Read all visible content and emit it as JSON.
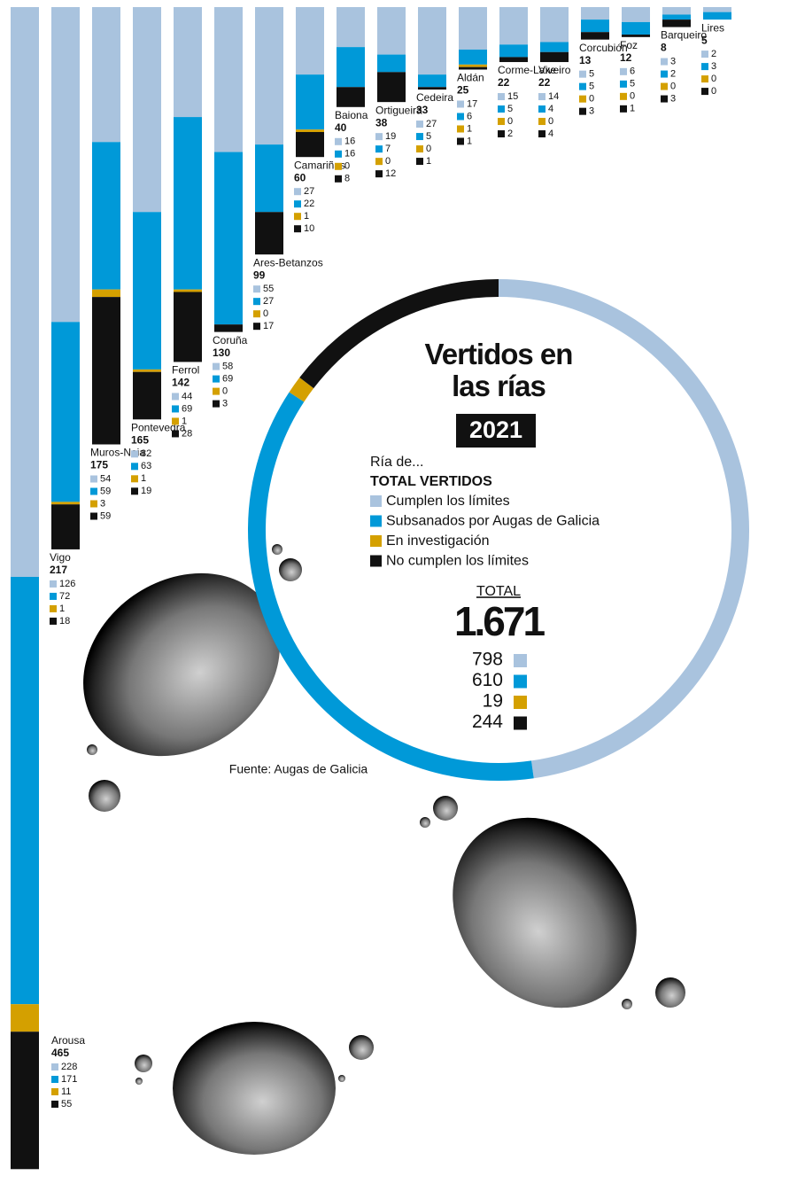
{
  "chart_data": [
    {
      "type": "bar",
      "stacked": true,
      "categories": [
        "Arousa",
        "Vigo",
        "Muros-Noia",
        "Pontevedra",
        "Ferrol",
        "Coruña",
        "Ares-Betanzos",
        "Camariñas",
        "Baiona",
        "Ortigueira",
        "Cedeira",
        "Aldán",
        "Corme-Laxe",
        "Viveiro",
        "Corcubión",
        "Foz",
        "Barqueiro",
        "Lires"
      ],
      "totals": [
        465,
        217,
        175,
        165,
        142,
        130,
        99,
        60,
        40,
        38,
        33,
        25,
        22,
        22,
        13,
        12,
        8,
        5
      ],
      "series": [
        {
          "name": "Cumplen los límites",
          "color": "#a9c3de",
          "values": [
            228,
            126,
            54,
            82,
            44,
            58,
            55,
            27,
            16,
            19,
            27,
            17,
            15,
            14,
            5,
            6,
            3,
            2
          ]
        },
        {
          "name": "Subsanados por Augas de Galicia",
          "color": "#0099d8",
          "values": [
            171,
            72,
            59,
            63,
            69,
            69,
            27,
            22,
            16,
            7,
            5,
            6,
            5,
            4,
            5,
            5,
            2,
            3
          ]
        },
        {
          "name": "En investigación",
          "color": "#d4a000",
          "values": [
            11,
            1,
            3,
            1,
            1,
            0,
            0,
            1,
            0,
            0,
            0,
            1,
            0,
            0,
            0,
            0,
            0,
            0
          ]
        },
        {
          "name": "No cumplen los límites",
          "color": "#111111",
          "values": [
            55,
            18,
            59,
            19,
            28,
            3,
            17,
            10,
            8,
            12,
            1,
            1,
            2,
            4,
            3,
            1,
            3,
            0
          ]
        }
      ]
    },
    {
      "type": "pie",
      "donut": true,
      "title": "Vertidos en las rías",
      "year": "2021",
      "legend_intro": "Ría de...",
      "legend_total": "TOTAL VERTIDOS",
      "total_label": "TOTAL",
      "total": {
        "value": 1671,
        "label": "1.671"
      },
      "values": [
        798,
        610,
        19,
        244
      ],
      "colors": [
        "#a9c3de",
        "#0099d8",
        "#d4a000",
        "#111111"
      ],
      "source": "Fuente: Augas de Galicia"
    }
  ]
}
